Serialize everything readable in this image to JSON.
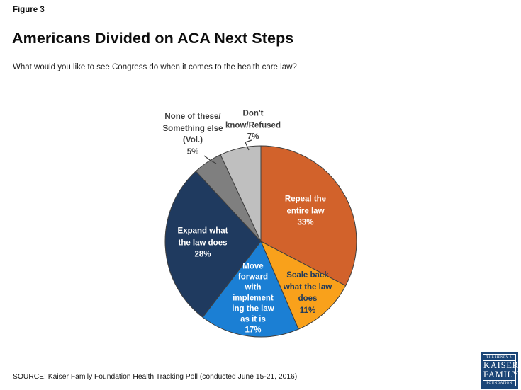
{
  "header": {
    "figure_label": "Figure 3",
    "title": "Americans Divided on ACA Next Steps",
    "subtitle": "What would you like to see Congress do when it comes to the health care law?"
  },
  "chart_data": {
    "type": "pie",
    "title": "Americans Divided on ACA Next Steps",
    "question": "What would you like to see Congress do when it comes to the health care law?",
    "categories": [
      "Repeal the entire law",
      "Scale back what the law does",
      "Move forward with implementing the law as it is",
      "Expand what the law does",
      "None of these/Something else (Vol.)",
      "Don't know/Refused"
    ],
    "values": [
      33,
      11,
      17,
      28,
      5,
      7
    ],
    "unit": "%",
    "colors": [
      "#D2622B",
      "#F9A11B",
      "#1B7FD4",
      "#1F3A5F",
      "#7F7F7F",
      "#BFBFBF"
    ],
    "slice_stroke_color": "#3F3F3F",
    "start_position": "12-o-clock",
    "direction": "clockwise",
    "legend_position": "none",
    "labels": {
      "repeal": "Repeal the\nentire law\n33%",
      "scale_back": "Scale back\nwhat the law\ndoes\n11%",
      "move_forward": "Move\nforward\nwith\nimplement\ning the law\nas it is\n17%",
      "expand": "Expand what\nthe law does\n28%",
      "none_of_these": "None of these/\nSomething else\n(Vol.)\n5%",
      "dont_know": "Don't\nknow/Refused\n7%"
    }
  },
  "footer": {
    "source": "SOURCE: Kaiser Family Foundation Health Tracking Poll (conducted June 15-21, 2016)",
    "logo": {
      "top": "THE HENRY J.",
      "name_line1": "KAISER",
      "name_line2": "FAMILY",
      "bottom": "FOUNDATION"
    }
  }
}
